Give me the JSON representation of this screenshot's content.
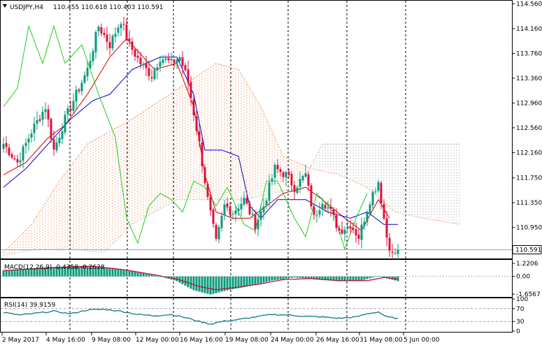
{
  "header": {
    "symbol": "USDJPY,H4",
    "ohlc": "110.455 110.618 110.403 110.591"
  },
  "price_axis": {
    "ticks": [
      "114.560",
      "114.160",
      "113.760",
      "113.360",
      "112.960",
      "112.560",
      "112.160",
      "111.750",
      "111.350",
      "110.950"
    ],
    "current_price_label": "110.591"
  },
  "macd_panel": {
    "label": "MACD(12,26,9) -0.4358 -0.2628",
    "ticks": [
      "1.2206",
      "0.00",
      "-1.6567"
    ]
  },
  "rsi_panel": {
    "label": "RSI(14) 39.9159",
    "ticks": [
      "100",
      "70",
      "30",
      "0"
    ]
  },
  "time_axis": {
    "labels": [
      "2 May 2017",
      "4 May 16:00",
      "9 May 08:00",
      "12 May 00:00",
      "16 May 16:00",
      "19 May 08:00",
      "24 May 00:00",
      "26 May 16:00",
      "31 May 08:00",
      "5 Jun 00:00"
    ]
  },
  "colors": {
    "bull": "#0a9a7a",
    "bear": "#e0103a",
    "tenkan": "#cc0000",
    "kijun": "#0000cc",
    "chikou": "#22cc22",
    "cloud_bull": "#f0a070",
    "cloud_bear": "#c0c0c0",
    "macd_hist": "#0a9a7a",
    "macd_signal": "#cc0033",
    "rsi_line": "#0a7a7a"
  },
  "chart_data": {
    "type": "candlestick",
    "symbol": "USDJPY",
    "timeframe": "H4",
    "ylim": [
      110.45,
      114.6
    ],
    "x_labels": [
      "2 May 2017",
      "4 May 16:00",
      "9 May 08:00",
      "12 May 00:00",
      "16 May 16:00",
      "19 May 08:00",
      "24 May 00:00",
      "26 May 16:00",
      "31 May 08:00",
      "5 Jun 00:00"
    ],
    "last_close": 110.591,
    "anchors": [
      [
        0,
        112.3
      ],
      [
        5,
        112.0
      ],
      [
        10,
        112.5
      ],
      [
        15,
        112.9
      ],
      [
        18,
        112.2
      ],
      [
        22,
        112.7
      ],
      [
        26,
        113.1
      ],
      [
        30,
        113.5
      ],
      [
        34,
        114.2
      ],
      [
        38,
        113.9
      ],
      [
        42,
        114.3
      ],
      [
        45,
        113.9
      ],
      [
        49,
        113.6
      ],
      [
        53,
        113.4
      ],
      [
        56,
        113.7
      ],
      [
        60,
        113.6
      ],
      [
        63,
        113.7
      ],
      [
        66,
        113.3
      ],
      [
        70,
        112.3
      ],
      [
        73,
        111.4
      ],
      [
        76,
        110.7
      ],
      [
        79,
        111.3
      ],
      [
        82,
        111.2
      ],
      [
        86,
        111.4
      ],
      [
        90,
        111.0
      ],
      [
        93,
        111.3
      ],
      [
        97,
        111.9
      ],
      [
        101,
        111.8
      ],
      [
        104,
        111.6
      ],
      [
        108,
        111.8
      ],
      [
        111,
        111.1
      ],
      [
        114,
        111.4
      ],
      [
        117,
        111.2
      ],
      [
        120,
        110.9
      ],
      [
        124,
        111.0
      ],
      [
        127,
        110.8
      ],
      [
        131,
        111.4
      ],
      [
        134,
        111.7
      ],
      [
        137,
        110.8
      ],
      [
        139,
        110.5
      ],
      [
        141,
        110.591
      ]
    ],
    "cloud": {
      "span_a": [
        [
          0,
          110.55
        ],
        [
          10,
          111.0
        ],
        [
          20,
          111.7
        ],
        [
          30,
          112.3
        ],
        [
          38,
          112.5
        ],
        [
          46,
          112.7
        ],
        [
          56,
          113.0
        ],
        [
          66,
          113.3
        ],
        [
          76,
          113.6
        ],
        [
          84,
          113.5
        ],
        [
          92,
          112.9
        ],
        [
          100,
          112.1
        ],
        [
          110,
          111.9
        ],
        [
          120,
          111.8
        ],
        [
          130,
          111.6
        ],
        [
          140,
          111.2
        ],
        [
          150,
          111.1
        ],
        [
          163,
          111.0
        ]
      ],
      "span_b": [
        [
          0,
          110.5
        ],
        [
          12,
          110.6
        ],
        [
          24,
          110.6
        ],
        [
          36,
          110.55
        ],
        [
          46,
          111.0
        ],
        [
          54,
          111.2
        ],
        [
          62,
          111.4
        ],
        [
          72,
          111.4
        ],
        [
          86,
          111.4
        ],
        [
          96,
          111.5
        ],
        [
          106,
          111.6
        ],
        [
          114,
          112.3
        ],
        [
          126,
          112.3
        ],
        [
          140,
          112.3
        ],
        [
          152,
          112.3
        ],
        [
          163,
          112.3
        ]
      ]
    },
    "tenkan": [
      [
        0,
        111.8
      ],
      [
        8,
        112.0
      ],
      [
        16,
        112.4
      ],
      [
        22,
        112.6
      ],
      [
        30,
        113.1
      ],
      [
        38,
        113.7
      ],
      [
        44,
        114.0
      ],
      [
        48,
        113.8
      ],
      [
        54,
        113.5
      ],
      [
        62,
        113.6
      ],
      [
        68,
        112.9
      ],
      [
        72,
        111.8
      ],
      [
        76,
        111.2
      ],
      [
        82,
        111.1
      ],
      [
        88,
        111.1
      ],
      [
        94,
        111.3
      ],
      [
        100,
        111.5
      ],
      [
        108,
        111.6
      ],
      [
        114,
        111.4
      ],
      [
        122,
        111.1
      ],
      [
        128,
        110.9
      ],
      [
        134,
        111.4
      ],
      [
        138,
        111.1
      ]
    ],
    "kijun": [
      [
        0,
        111.6
      ],
      [
        8,
        111.9
      ],
      [
        16,
        112.3
      ],
      [
        24,
        112.7
      ],
      [
        32,
        113.0
      ],
      [
        38,
        113.1
      ],
      [
        46,
        113.5
      ],
      [
        56,
        113.7
      ],
      [
        62,
        113.7
      ],
      [
        68,
        113.1
      ],
      [
        72,
        112.2
      ],
      [
        78,
        112.2
      ],
      [
        84,
        112.1
      ],
      [
        88,
        111.3
      ],
      [
        92,
        111.1
      ],
      [
        98,
        111.4
      ],
      [
        108,
        111.4
      ],
      [
        116,
        111.2
      ],
      [
        124,
        111.1
      ],
      [
        130,
        111.2
      ],
      [
        136,
        111.0
      ],
      [
        141,
        111.0
      ]
    ],
    "chikou": [
      [
        0,
        112.9
      ],
      [
        5,
        113.2
      ],
      [
        9,
        114.2
      ],
      [
        14,
        113.6
      ],
      [
        18,
        114.2
      ],
      [
        22,
        113.6
      ],
      [
        28,
        113.9
      ],
      [
        34,
        113.1
      ],
      [
        40,
        112.4
      ],
      [
        44,
        111.1
      ],
      [
        48,
        110.7
      ],
      [
        52,
        111.3
      ],
      [
        56,
        111.5
      ],
      [
        60,
        111.4
      ],
      [
        64,
        111.2
      ],
      [
        68,
        111.7
      ],
      [
        72,
        111.6
      ],
      [
        76,
        111.3
      ],
      [
        80,
        111.6
      ],
      [
        86,
        111.0
      ],
      [
        90,
        110.9
      ],
      [
        94,
        111.7
      ],
      [
        98,
        111.7
      ],
      [
        104,
        111.1
      ],
      [
        108,
        110.8
      ],
      [
        112,
        111.5
      ],
      [
        118,
        111.2
      ],
      [
        122,
        110.6
      ],
      [
        126,
        111.1
      ],
      [
        130,
        111.5
      ]
    ],
    "macd_ylim": [
      -1.6567,
      1.2206
    ],
    "macd_hist_anchors": [
      [
        0,
        0.55
      ],
      [
        15,
        0.85
      ],
      [
        30,
        1.0
      ],
      [
        40,
        0.75
      ],
      [
        50,
        0.3
      ],
      [
        56,
        0.0
      ],
      [
        62,
        -0.45
      ],
      [
        68,
        -1.3
      ],
      [
        74,
        -1.7
      ],
      [
        80,
        -1.3
      ],
      [
        88,
        -0.9
      ],
      [
        96,
        -0.4
      ],
      [
        104,
        -0.1
      ],
      [
        112,
        -0.3
      ],
      [
        120,
        -0.45
      ],
      [
        128,
        -0.4
      ],
      [
        134,
        0.05
      ],
      [
        138,
        -0.25
      ],
      [
        141,
        -0.44
      ]
    ],
    "macd_signal_anchors": [
      [
        0,
        0.55
      ],
      [
        20,
        0.85
      ],
      [
        32,
        0.95
      ],
      [
        44,
        0.6
      ],
      [
        54,
        0.15
      ],
      [
        62,
        -0.25
      ],
      [
        70,
        -0.95
      ],
      [
        76,
        -1.25
      ],
      [
        84,
        -1.0
      ],
      [
        92,
        -0.7
      ],
      [
        100,
        -0.3
      ],
      [
        110,
        -0.2
      ],
      [
        120,
        -0.4
      ],
      [
        130,
        -0.4
      ],
      [
        136,
        -0.1
      ],
      [
        141,
        -0.26
      ]
    ],
    "rsi_anchors": [
      [
        0,
        58
      ],
      [
        6,
        50
      ],
      [
        12,
        56
      ],
      [
        18,
        62
      ],
      [
        24,
        54
      ],
      [
        30,
        66
      ],
      [
        36,
        68
      ],
      [
        42,
        62
      ],
      [
        48,
        52
      ],
      [
        54,
        48
      ],
      [
        60,
        52
      ],
      [
        66,
        40
      ],
      [
        70,
        30
      ],
      [
        74,
        22
      ],
      [
        78,
        30
      ],
      [
        84,
        36
      ],
      [
        90,
        44
      ],
      [
        96,
        52
      ],
      [
        102,
        50
      ],
      [
        108,
        46
      ],
      [
        114,
        44
      ],
      [
        120,
        40
      ],
      [
        126,
        44
      ],
      [
        130,
        54
      ],
      [
        134,
        60
      ],
      [
        137,
        44
      ],
      [
        141,
        39.9
      ]
    ]
  }
}
